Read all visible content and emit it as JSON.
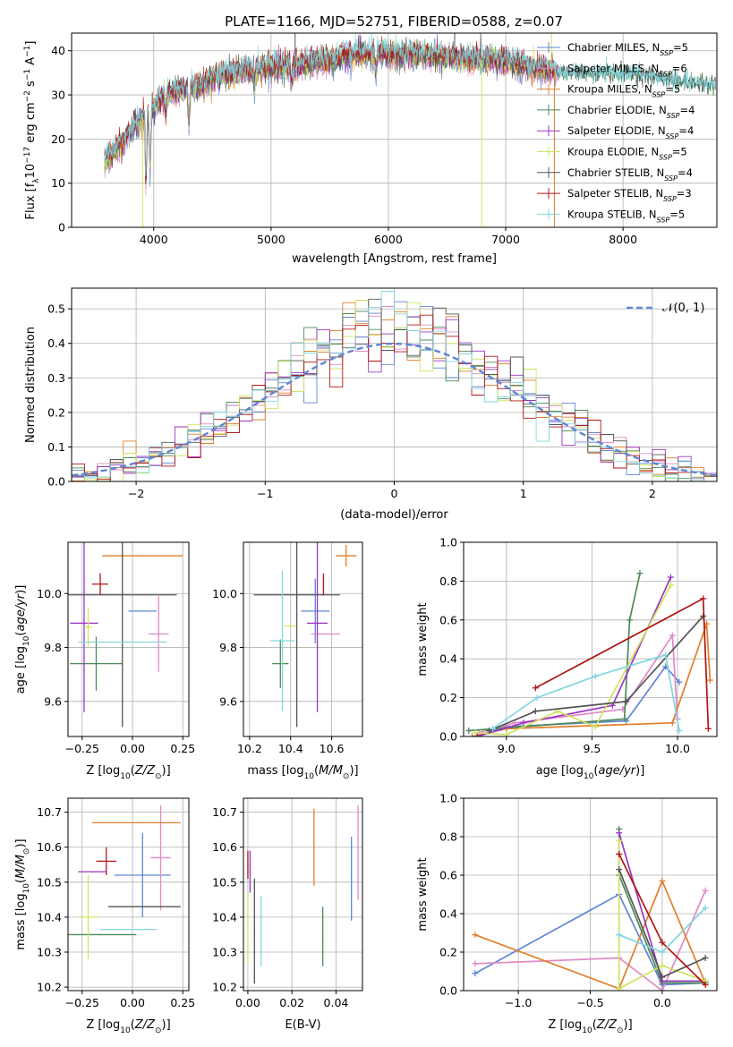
{
  "figure": {
    "title": "PLATE=1166, MJD=52751, FIBERID=0588, z=0.07"
  },
  "colors": [
    "#5f86d4",
    "#e08ac6",
    "#e07f2a",
    "#4e8a57",
    "#9a36c2",
    "#cfe35e",
    "#555555",
    "#b01717",
    "#83d6de"
  ],
  "legend_entries": [
    {
      "pre": "Chabrier MILES, N",
      "sub": "SSP",
      "post": "=5"
    },
    {
      "pre": "Salpeter MILES, N",
      "sub": "SSP",
      "post": "=6"
    },
    {
      "pre": "Kroupa MILES, N",
      "sub": "SSP",
      "post": "=5"
    },
    {
      "pre": "Chabrier ELODIE, N",
      "sub": "SSP",
      "post": "=4"
    },
    {
      "pre": "Salpeter ELODIE, N",
      "sub": "SSP",
      "post": "=4"
    },
    {
      "pre": "Kroupa ELODIE, N",
      "sub": "SSP",
      "post": "=5"
    },
    {
      "pre": "Chabrier STELIB, N",
      "sub": "SSP",
      "post": "=4"
    },
    {
      "pre": "Salpeter STELIB, N",
      "sub": "SSP",
      "post": "=3"
    },
    {
      "pre": "Kroupa STELIB, N",
      "sub": "SSP",
      "post": "=5"
    }
  ],
  "chart_data": [
    {
      "type": "line",
      "id": "spectrum",
      "xlabel": "wavelength [Angstrom, rest frame]",
      "ylabel": "Flux [f_λ10^-17 erg cm^-2 s^-1 A^-1]",
      "ylabel_parts": {
        "pre": "Flux [f",
        "s1": "λ",
        "m1": "10",
        "p1": "−17",
        "m2": " erg cm",
        "p2": "−2",
        "m3": " s",
        "p3": "−1",
        "m4": " A",
        "p4": "−1",
        "post": "]"
      },
      "xlim": [
        3300,
        8800
      ],
      "ylim": [
        0,
        44
      ],
      "xticks": [
        4000,
        5000,
        6000,
        7000,
        8000
      ],
      "yticks": [
        0,
        10,
        20,
        30,
        40
      ],
      "continuum_x": [
        3580,
        3700,
        3800,
        3900,
        4000,
        4100,
        4200,
        4300,
        4400,
        4500,
        4700,
        4900,
        5100,
        5300,
        5500,
        5700,
        5900,
        6100,
        6300,
        6500,
        6700,
        6900,
        7100,
        7300,
        7500,
        7700,
        7900,
        8100,
        8300,
        8500,
        8700
      ],
      "continuum_y": [
        15,
        18,
        22,
        25,
        27,
        30,
        31,
        31.5,
        32,
        34,
        35,
        36,
        36.5,
        37,
        38,
        39,
        39.5,
        39,
        39,
        38.5,
        38,
        38,
        37,
        36,
        35,
        35,
        35,
        35,
        34,
        33,
        32.5
      ],
      "features": [
        {
          "x": 3934,
          "y": 8
        },
        {
          "x": 3969,
          "y": 12
        },
        {
          "x": 4102,
          "y": 25
        },
        {
          "x": 4300,
          "y": 23
        },
        {
          "x": 4861,
          "y": 31
        },
        {
          "x": 5175,
          "y": 32
        },
        {
          "x": 5893,
          "y": 35
        }
      ],
      "spikes": [
        {
          "x": 3905,
          "y": 0,
          "color_index": 5
        },
        {
          "x": 5205,
          "y": 44,
          "color_index": 6
        },
        {
          "x": 6565,
          "y": 44,
          "color_index": 6
        },
        {
          "x": 6795,
          "y": 0,
          "color_index": 5
        },
        {
          "x": 7415,
          "y": 0,
          "color_index": 2
        },
        {
          "x": 7390,
          "y": 44,
          "color_index": 5
        }
      ]
    },
    {
      "type": "histogram",
      "id": "residuals",
      "xlabel": "(data-model)/error",
      "ylabel": "Normed distribution",
      "xlim": [
        -2.5,
        2.5
      ],
      "ylim": [
        0,
        0.56
      ],
      "xticks": [
        -2,
        -1,
        0,
        1,
        2
      ],
      "xtick_labels": [
        "−2",
        "−1",
        "0",
        "1",
        "2"
      ],
      "yticks": [
        0,
        0.1,
        0.2,
        0.3,
        0.4,
        0.5
      ],
      "ytick_labels": [
        "0.0",
        "0.1",
        "0.2",
        "0.3",
        "0.4",
        "0.5"
      ],
      "bin_width": 0.1,
      "reference_curve": {
        "label": "𝒩(0, 1)",
        "mean": 0,
        "sigma": 1,
        "color": "#5f86d4"
      }
    },
    {
      "type": "errorbar",
      "id": "age_vs_Z",
      "xlabel": "Z [log10(Z/Z⊙)]",
      "ylabel": "age [log10(age/yr)]",
      "xlabel_parts": {
        "pre": "Z [log",
        "sub": "10",
        "mid": "(",
        "ital": "Z/Z",
        "sun": "⊙",
        "post": ")]"
      },
      "ylabel_parts": {
        "pre": "age  [log",
        "sub": "10",
        "mid": "(",
        "ital": "age/yr",
        "post": ")]"
      },
      "xlim": [
        -0.32,
        0.28
      ],
      "ylim": [
        9.47,
        10.19
      ],
      "xticks": [
        -0.25,
        0.0,
        0.25
      ],
      "xtick_labels": [
        "−0.25",
        "0.00",
        "0.25"
      ],
      "yticks": [
        9.6,
        9.8,
        10.0
      ],
      "ytick_labels": [
        "9.6",
        "9.8",
        "10.0"
      ],
      "points": [
        {
          "x": 0.05,
          "y": 9.935,
          "xerr": 0.07,
          "yerr": 0.0,
          "color_index": 0
        },
        {
          "x": 0.13,
          "y": 9.85,
          "xerr": 0.05,
          "yerr": 0.14,
          "color_index": 1
        },
        {
          "x": 0.05,
          "y": 10.14,
          "xerr": 0.2,
          "yerr": 0.0,
          "color_index": 2
        },
        {
          "x": -0.18,
          "y": 9.74,
          "xerr": 0.13,
          "yerr": 0.1,
          "color_index": 3
        },
        {
          "x": -0.24,
          "y": 9.89,
          "xerr": 0.07,
          "yerr": 0.33,
          "color_index": 4
        },
        {
          "x": -0.22,
          "y": 9.875,
          "xerr": 0.02,
          "yerr": 0.07,
          "color_index": 5
        },
        {
          "x": -0.05,
          "y": 9.995,
          "xerr": 0.27,
          "yerr": 0.49,
          "color_index": 6
        },
        {
          "x": -0.16,
          "y": 10.035,
          "xerr": 0.04,
          "yerr": 0.04,
          "color_index": 7
        },
        {
          "x": -0.05,
          "y": 9.82,
          "xerr": 0.22,
          "yerr": 0.0,
          "color_index": 8
        }
      ]
    },
    {
      "type": "errorbar",
      "id": "age_vs_mass",
      "xlabel": "mass [log10(M/M⊙)]",
      "xlabel_parts": {
        "pre": "mass [log",
        "sub": "10",
        "mid": "(",
        "ital": "M/M",
        "sun": "⊙",
        "post": ")]"
      },
      "xlim": [
        10.17,
        10.75
      ],
      "ylim": [
        9.47,
        10.19
      ],
      "xticks": [
        10.2,
        10.4,
        10.6
      ],
      "xtick_labels": [
        "10.2",
        "10.4",
        "10.6"
      ],
      "yticks": [
        9.6,
        9.8,
        10.0
      ],
      "ytick_labels": [
        "9.6",
        "9.8",
        "10.0"
      ],
      "points": [
        {
          "x": 10.52,
          "y": 9.935,
          "xerr": 0.07,
          "yerr": 0.12,
          "color_index": 0
        },
        {
          "x": 10.57,
          "y": 9.85,
          "xerr": 0.07,
          "yerr": 0.0,
          "color_index": 1
        },
        {
          "x": 10.67,
          "y": 10.14,
          "xerr": 0.05,
          "yerr": 0.04,
          "color_index": 2
        },
        {
          "x": 10.35,
          "y": 9.74,
          "xerr": 0.04,
          "yerr": 0.09,
          "color_index": 3
        },
        {
          "x": 10.53,
          "y": 9.89,
          "xerr": 0.05,
          "yerr": 0.33,
          "color_index": 4
        },
        {
          "x": 10.4,
          "y": 9.88,
          "xerr": 0.03,
          "yerr": 0.0,
          "color_index": 5
        },
        {
          "x": 10.43,
          "y": 9.995,
          "xerr": 0.21,
          "yerr": 0.49,
          "color_index": 6
        },
        {
          "x": 10.56,
          "y": 10.035,
          "xerr": 0.0,
          "yerr": 0.04,
          "color_index": 7
        },
        {
          "x": 10.36,
          "y": 9.825,
          "xerr": 0.06,
          "yerr": 0.26,
          "color_index": 8
        }
      ]
    },
    {
      "type": "line",
      "id": "massweight_vs_age",
      "xlabel": "age [log10(age/yr)]",
      "ylabel": "mass weight",
      "xlabel_parts": {
        "pre": "age  [log",
        "sub": "10",
        "mid": "(",
        "ital": "age/yr",
        "post": ")]"
      },
      "xlim": [
        8.75,
        10.23
      ],
      "ylim": [
        0,
        1
      ],
      "xticks": [
        9.0,
        9.5,
        10.0
      ],
      "xtick_labels": [
        "9.0",
        "9.5",
        "10.0"
      ],
      "yticks": [
        0,
        0.2,
        0.4,
        0.6,
        0.8,
        1.0
      ],
      "ytick_labels": [
        "0.0",
        "0.2",
        "0.4",
        "0.6",
        "0.8",
        "1.0"
      ],
      "series": [
        {
          "color_index": 0,
          "x": [
            8.85,
            9.0,
            9.7,
            9.93,
            10.01
          ],
          "y": [
            0.01,
            0.05,
            0.08,
            0.36,
            0.28
          ]
        },
        {
          "color_index": 1,
          "x": [
            8.84,
            9.05,
            9.68,
            9.97,
            10.0
          ],
          "y": [
            0.02,
            0.07,
            0.14,
            0.52,
            0.09
          ]
        },
        {
          "color_index": 2,
          "x": [
            8.8,
            9.0,
            9.97,
            10.17,
            10.19
          ],
          "y": [
            0.0,
            0.04,
            0.07,
            0.58,
            0.29
          ]
        },
        {
          "color_index": 3,
          "x": [
            8.78,
            9.69,
            9.72,
            9.78
          ],
          "y": [
            0.03,
            0.09,
            0.6,
            0.84
          ]
        },
        {
          "color_index": 4,
          "x": [
            8.83,
            9.1,
            9.62,
            9.96
          ],
          "y": [
            0.0,
            0.07,
            0.16,
            0.82
          ]
        },
        {
          "color_index": 5,
          "x": [
            8.82,
            9.0,
            9.3,
            9.52,
            9.96
          ],
          "y": [
            0.02,
            0.01,
            0.13,
            0.05,
            0.78
          ]
        },
        {
          "color_index": 6,
          "x": [
            8.9,
            9.17,
            9.7,
            10.15
          ],
          "y": [
            0.03,
            0.13,
            0.18,
            0.62
          ]
        },
        {
          "color_index": 7,
          "x": [
            9.17,
            10.15,
            10.18
          ],
          "y": [
            0.25,
            0.71,
            0.04
          ]
        },
        {
          "color_index": 8,
          "x": [
            8.92,
            9.18,
            9.52,
            9.93,
            10.01
          ],
          "y": [
            0.04,
            0.2,
            0.31,
            0.42,
            0.03
          ]
        }
      ]
    },
    {
      "type": "errorbar",
      "id": "mass_vs_Z",
      "xlabel": "Z [log10(Z/Z⊙)]",
      "ylabel": "mass [log10(M/M⊙)]",
      "xlabel_parts": {
        "pre": "Z [log",
        "sub": "10",
        "mid": "(",
        "ital": "Z/Z",
        "sun": "⊙",
        "post": ")]"
      },
      "ylabel_parts": {
        "pre": "mass [log",
        "sub": "10",
        "mid": "(",
        "ital": "M/M",
        "sun": "⊙",
        "post": ")]"
      },
      "xlim": [
        -0.32,
        0.28
      ],
      "ylim": [
        10.19,
        10.74
      ],
      "xticks": [
        -0.25,
        0.0,
        0.25
      ],
      "xtick_labels": [
        "−0.25",
        "0.00",
        "0.25"
      ],
      "yticks": [
        10.2,
        10.3,
        10.4,
        10.5,
        10.6,
        10.7
      ],
      "ytick_labels": [
        "10.2",
        "10.3",
        "10.4",
        "10.5",
        "10.6",
        "10.7"
      ],
      "points": [
        {
          "x": 0.05,
          "y": 10.52,
          "xerr": 0.14,
          "yerr": 0.12,
          "color_index": 0
        },
        {
          "x": 0.14,
          "y": 10.57,
          "xerr": 0.05,
          "yerr": 0.15,
          "color_index": 1
        },
        {
          "x": 0.02,
          "y": 10.67,
          "xerr": 0.22,
          "yerr": 0.0,
          "color_index": 2
        },
        {
          "x": -0.16,
          "y": 10.35,
          "xerr": 0.18,
          "yerr": 0.0,
          "color_index": 3
        },
        {
          "x": -0.2,
          "y": 10.53,
          "xerr": 0.07,
          "yerr": 0.0,
          "color_index": 4
        },
        {
          "x": -0.22,
          "y": 10.4,
          "xerr": 0.05,
          "yerr": 0.12,
          "color_index": 5
        },
        {
          "x": 0.06,
          "y": 10.43,
          "xerr": 0.18,
          "yerr": 0.0,
          "color_index": 6
        },
        {
          "x": -0.13,
          "y": 10.56,
          "xerr": 0.05,
          "yerr": 0.04,
          "color_index": 7
        },
        {
          "x": -0.02,
          "y": 10.365,
          "xerr": 0.14,
          "yerr": 0.0,
          "color_index": 8
        }
      ]
    },
    {
      "type": "errorbar",
      "id": "mass_vs_EBV",
      "xlabel": "E(B-V)",
      "xlim": [
        -0.002,
        0.052
      ],
      "ylim": [
        10.19,
        10.74
      ],
      "xticks": [
        0.0,
        0.02,
        0.04
      ],
      "xtick_labels": [
        "0.00",
        "0.02",
        "0.04"
      ],
      "yticks": [
        10.2,
        10.3,
        10.4,
        10.5,
        10.6,
        10.7
      ],
      "ytick_labels": [
        "10.2",
        "10.3",
        "10.4",
        "10.5",
        "10.6",
        "10.7"
      ],
      "points": [
        {
          "x": 0.047,
          "y": 10.51,
          "xerr": 0.0,
          "yerr": 0.12,
          "color_index": 0
        },
        {
          "x": 0.05,
          "y": 10.585,
          "xerr": 0.0,
          "yerr": 0.135,
          "color_index": 1
        },
        {
          "x": 0.03,
          "y": 10.6,
          "xerr": 0.0,
          "yerr": 0.11,
          "color_index": 2
        },
        {
          "x": 0.034,
          "y": 10.345,
          "xerr": 0.0,
          "yerr": 0.085,
          "color_index": 3
        },
        {
          "x": 0.001,
          "y": 10.53,
          "xerr": 0.0,
          "yerr": 0.06,
          "color_index": 4
        },
        {
          "x": 0.0,
          "y": 10.37,
          "xerr": 0.0,
          "yerr": 0.1,
          "color_index": 5
        },
        {
          "x": 0.003,
          "y": 10.36,
          "xerr": 0.0,
          "yerr": 0.15,
          "color_index": 6
        },
        {
          "x": 0.0,
          "y": 10.55,
          "xerr": 0.0,
          "yerr": 0.04,
          "color_index": 7
        },
        {
          "x": 0.006,
          "y": 10.36,
          "xerr": 0.0,
          "yerr": 0.1,
          "color_index": 8
        }
      ]
    },
    {
      "type": "line",
      "id": "massweight_vs_Z",
      "xlabel": "Z [log10(Z/Z⊙)]",
      "ylabel": "mass weight",
      "xlabel_parts": {
        "pre": "Z [log",
        "sub": "10",
        "mid": "(",
        "ital": "Z/Z",
        "sun": "⊙",
        "post": ")]"
      },
      "xlim": [
        -1.38,
        0.38
      ],
      "ylim": [
        0,
        1
      ],
      "xticks": [
        -1.0,
        -0.5,
        0.0
      ],
      "xtick_labels": [
        "−1.0",
        "−0.5",
        "0.0"
      ],
      "yticks": [
        0,
        0.2,
        0.4,
        0.6,
        0.8,
        1.0
      ],
      "ytick_labels": [
        "0.0",
        "0.2",
        "0.4",
        "0.6",
        "0.8",
        "1.0"
      ],
      "series": [
        {
          "color_index": 0,
          "x": [
            -1.3,
            -0.3,
            0.0,
            0.3
          ],
          "y": [
            0.09,
            0.5,
            0.03,
            0.04
          ]
        },
        {
          "color_index": 1,
          "x": [
            -1.3,
            -0.3,
            0.0,
            0.3
          ],
          "y": [
            0.14,
            0.17,
            0.0,
            0.52
          ]
        },
        {
          "color_index": 2,
          "x": [
            -1.3,
            -0.3,
            0.0,
            0.3
          ],
          "y": [
            0.29,
            0.01,
            0.57,
            0.04
          ]
        },
        {
          "color_index": 3,
          "x": [
            -0.3,
            -0.3,
            0.0,
            0.3
          ],
          "y": [
            0.84,
            0.6,
            0.04,
            0.04
          ]
        },
        {
          "color_index": 4,
          "x": [
            -0.3,
            0.0,
            0.3
          ],
          "y": [
            0.82,
            0.05,
            0.05
          ]
        },
        {
          "color_index": 5,
          "x": [
            -0.3,
            -0.3,
            0.0,
            0.3
          ],
          "y": [
            0.78,
            0.01,
            0.13,
            0.05
          ]
        },
        {
          "color_index": 6,
          "x": [
            -0.3,
            0.0,
            0.3
          ],
          "y": [
            0.63,
            0.07,
            0.17
          ]
        },
        {
          "color_index": 7,
          "x": [
            -0.3,
            0.0,
            0.3
          ],
          "y": [
            0.71,
            0.25,
            0.03
          ]
        },
        {
          "color_index": 8,
          "x": [
            -0.3,
            0.0,
            0.3
          ],
          "y": [
            0.29,
            0.2,
            0.43
          ]
        }
      ]
    }
  ]
}
